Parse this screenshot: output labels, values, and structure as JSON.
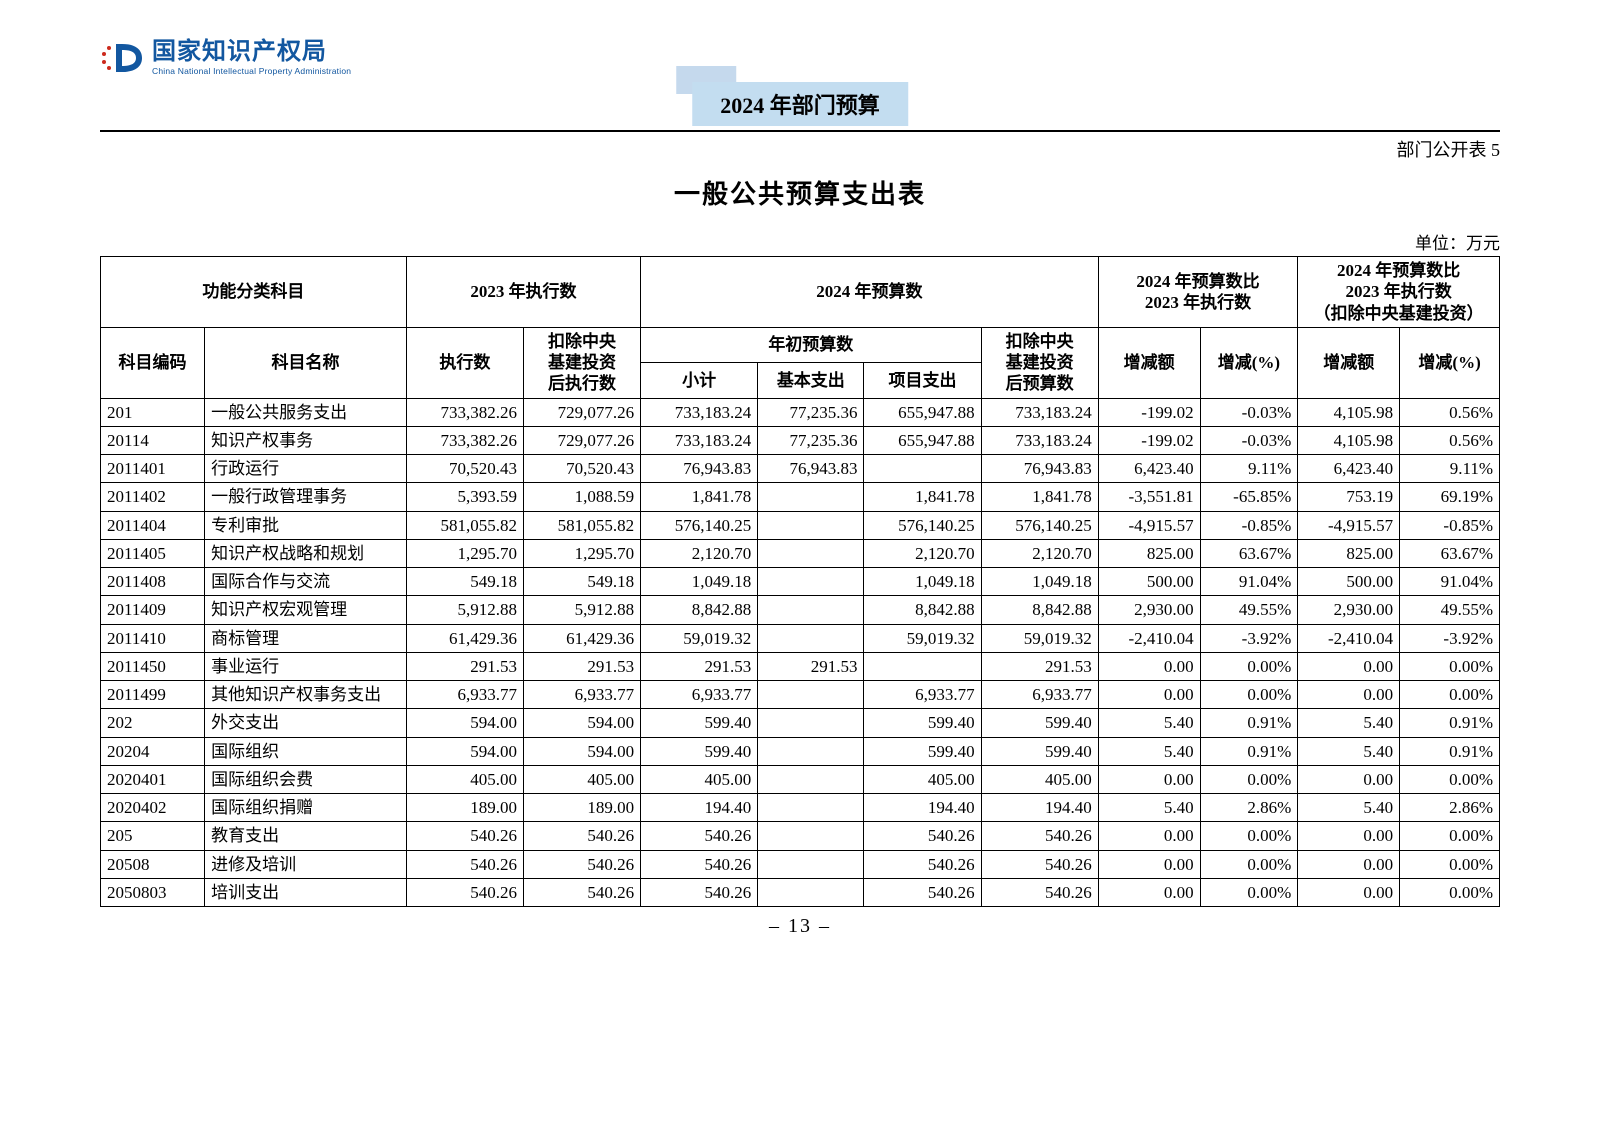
{
  "org": {
    "name_cn": "国家知识产权局",
    "name_en": "China National Intellectual Property Administration",
    "logo_color": "#1257a0",
    "logo_accent": "#cc2a1d"
  },
  "doc": {
    "tag": "2024 年部门预算",
    "tag_bg": "#c3ddf0",
    "tag_shadow": "#c5d9ed",
    "table_label": "部门公开表 5",
    "title": "一般公共预算支出表",
    "unit": "单位：万元",
    "page_number": "– 13 –"
  },
  "table": {
    "head": {
      "g1": "功能分类科目",
      "g2": "2023 年执行数",
      "g3": "2024 年预算数",
      "g4a": "2024 年预算数比",
      "g4b": "2023 年执行数",
      "g5a": "2024 年预算数比",
      "g5b": "2023 年执行数",
      "g5c": "（扣除中央基建投资）",
      "code": "科目编码",
      "name": "科目名称",
      "exec": "执行数",
      "exec_ex_a": "扣除中央",
      "exec_ex_b": "基建投资",
      "exec_ex_c": "后执行数",
      "init": "年初预算数",
      "sub": "小计",
      "basic": "基本支出",
      "proj": "项目支出",
      "budget_ex_a": "扣除中央",
      "budget_ex_b": "基建投资",
      "budget_ex_c": "后预算数",
      "chg_amt": "增减额",
      "chg_pct": "增减(%)"
    },
    "columns_align": [
      "code",
      "name",
      "num",
      "num",
      "num",
      "num",
      "num",
      "num",
      "num",
      "num",
      "num",
      "num"
    ],
    "rows": [
      [
        "201",
        "一般公共服务支出",
        "733,382.26",
        "729,077.26",
        "733,183.24",
        "77,235.36",
        "655,947.88",
        "733,183.24",
        "-199.02",
        "-0.03%",
        "4,105.98",
        "0.56%"
      ],
      [
        "20114",
        "知识产权事务",
        "733,382.26",
        "729,077.26",
        "733,183.24",
        "77,235.36",
        "655,947.88",
        "733,183.24",
        "-199.02",
        "-0.03%",
        "4,105.98",
        "0.56%"
      ],
      [
        "2011401",
        "行政运行",
        "70,520.43",
        "70,520.43",
        "76,943.83",
        "76,943.83",
        "",
        "76,943.83",
        "6,423.40",
        "9.11%",
        "6,423.40",
        "9.11%"
      ],
      [
        "2011402",
        "一般行政管理事务",
        "5,393.59",
        "1,088.59",
        "1,841.78",
        "",
        "1,841.78",
        "1,841.78",
        "-3,551.81",
        "-65.85%",
        "753.19",
        "69.19%"
      ],
      [
        "2011404",
        "专利审批",
        "581,055.82",
        "581,055.82",
        "576,140.25",
        "",
        "576,140.25",
        "576,140.25",
        "-4,915.57",
        "-0.85%",
        "-4,915.57",
        "-0.85%"
      ],
      [
        "2011405",
        "知识产权战略和规划",
        "1,295.70",
        "1,295.70",
        "2,120.70",
        "",
        "2,120.70",
        "2,120.70",
        "825.00",
        "63.67%",
        "825.00",
        "63.67%"
      ],
      [
        "2011408",
        "国际合作与交流",
        "549.18",
        "549.18",
        "1,049.18",
        "",
        "1,049.18",
        "1,049.18",
        "500.00",
        "91.04%",
        "500.00",
        "91.04%"
      ],
      [
        "2011409",
        "知识产权宏观管理",
        "5,912.88",
        "5,912.88",
        "8,842.88",
        "",
        "8,842.88",
        "8,842.88",
        "2,930.00",
        "49.55%",
        "2,930.00",
        "49.55%"
      ],
      [
        "2011410",
        "商标管理",
        "61,429.36",
        "61,429.36",
        "59,019.32",
        "",
        "59,019.32",
        "59,019.32",
        "-2,410.04",
        "-3.92%",
        "-2,410.04",
        "-3.92%"
      ],
      [
        "2011450",
        "事业运行",
        "291.53",
        "291.53",
        "291.53",
        "291.53",
        "",
        "291.53",
        "0.00",
        "0.00%",
        "0.00",
        "0.00%"
      ],
      [
        "2011499",
        "其他知识产权事务支出",
        "6,933.77",
        "6,933.77",
        "6,933.77",
        "",
        "6,933.77",
        "6,933.77",
        "0.00",
        "0.00%",
        "0.00",
        "0.00%"
      ],
      [
        "202",
        "外交支出",
        "594.00",
        "594.00",
        "599.40",
        "",
        "599.40",
        "599.40",
        "5.40",
        "0.91%",
        "5.40",
        "0.91%"
      ],
      [
        "20204",
        "国际组织",
        "594.00",
        "594.00",
        "599.40",
        "",
        "599.40",
        "599.40",
        "5.40",
        "0.91%",
        "5.40",
        "0.91%"
      ],
      [
        "2020401",
        "国际组织会费",
        "405.00",
        "405.00",
        "405.00",
        "",
        "405.00",
        "405.00",
        "0.00",
        "0.00%",
        "0.00",
        "0.00%"
      ],
      [
        "2020402",
        "国际组织捐赠",
        "189.00",
        "189.00",
        "194.40",
        "",
        "194.40",
        "194.40",
        "5.40",
        "2.86%",
        "5.40",
        "2.86%"
      ],
      [
        "205",
        "教育支出",
        "540.26",
        "540.26",
        "540.26",
        "",
        "540.26",
        "540.26",
        "0.00",
        "0.00%",
        "0.00",
        "0.00%"
      ],
      [
        "20508",
        "进修及培训",
        "540.26",
        "540.26",
        "540.26",
        "",
        "540.26",
        "540.26",
        "0.00",
        "0.00%",
        "0.00",
        "0.00%"
      ],
      [
        "2050803",
        "培训支出",
        "540.26",
        "540.26",
        "540.26",
        "",
        "540.26",
        "540.26",
        "0.00",
        "0.00%",
        "0.00",
        "0.00%"
      ]
    ]
  }
}
